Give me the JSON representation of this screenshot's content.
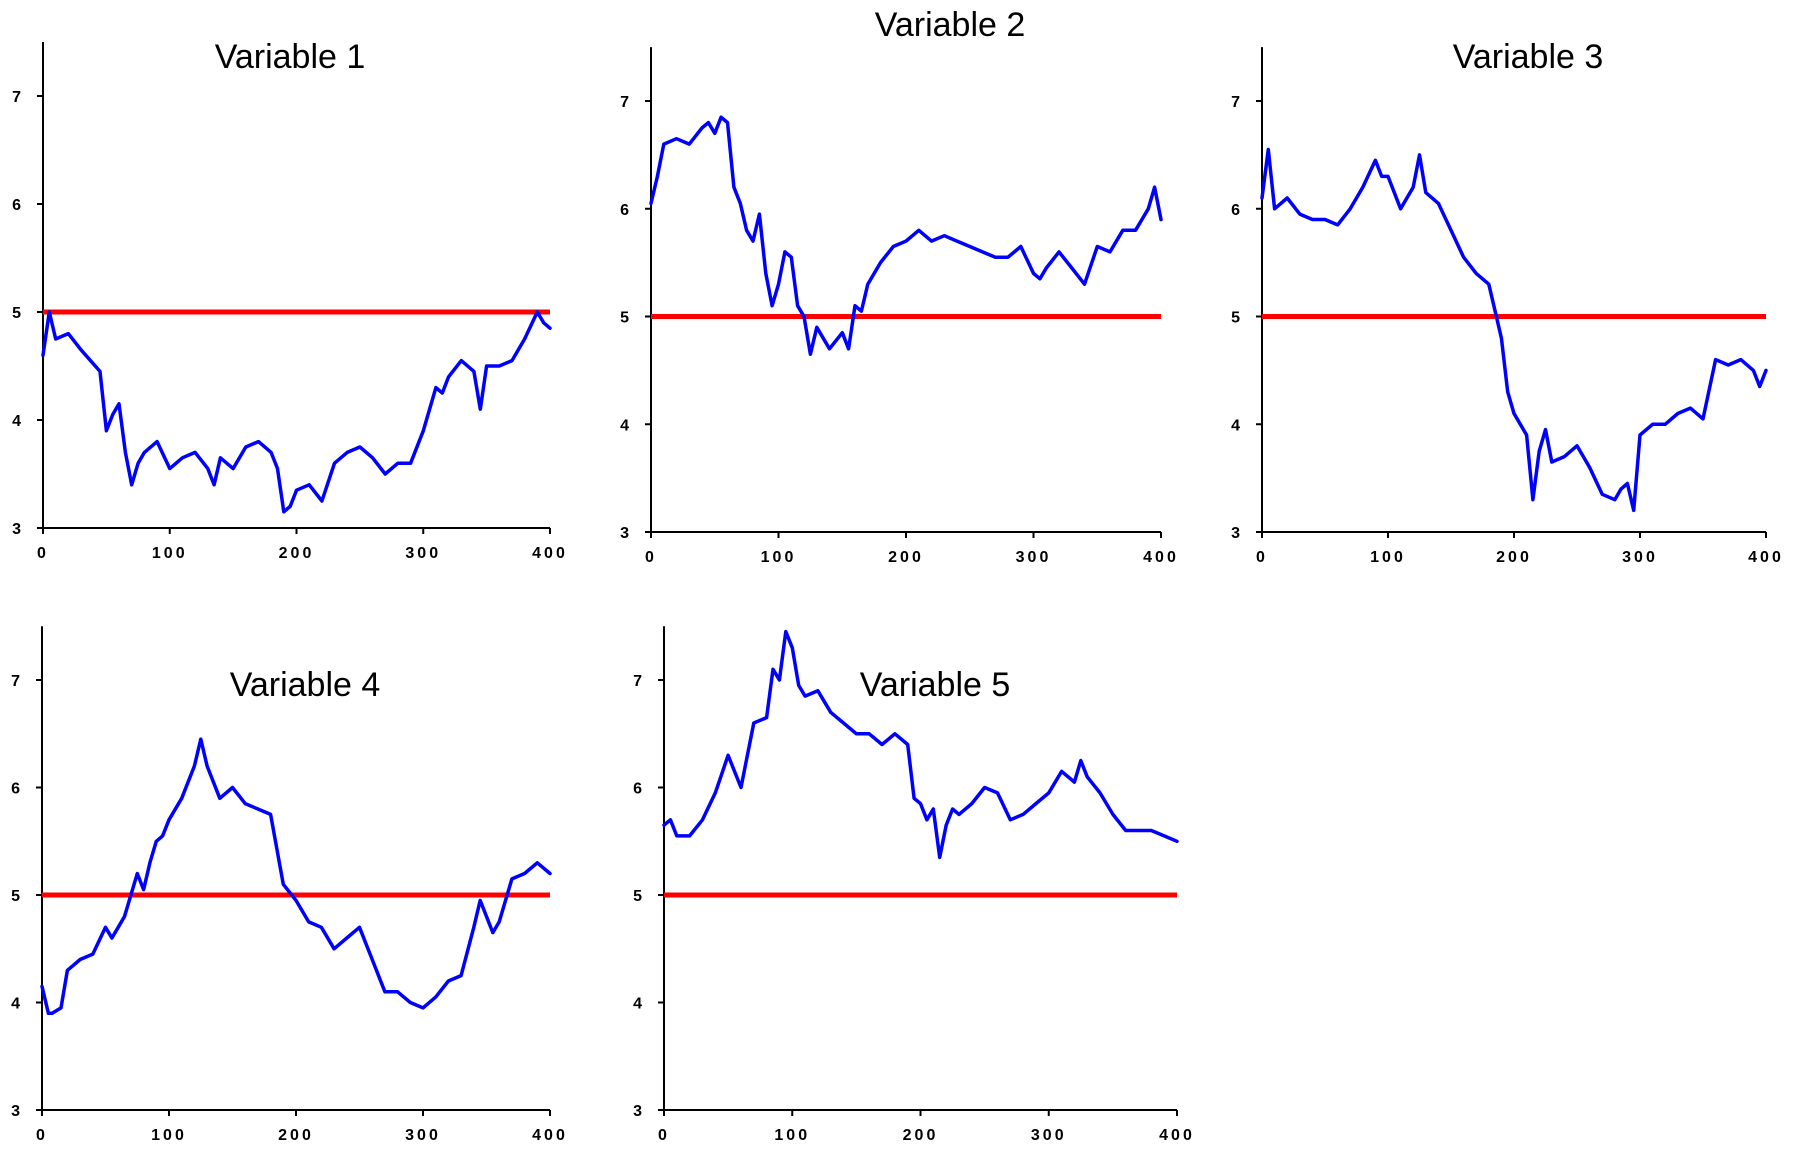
{
  "chart_data": [
    {
      "type": "line",
      "title": "Variable 1",
      "xlim": [
        0,
        400
      ],
      "ylim": [
        3,
        7.5
      ],
      "xticks": [
        0,
        100,
        200,
        300,
        400
      ],
      "yticks": [
        3,
        4,
        5,
        6,
        7
      ],
      "grid": false,
      "reference_line": {
        "y": 5,
        "color": "#ff0000"
      },
      "series": [
        {
          "color": "#0000ff",
          "x": [
            0,
            5,
            10,
            20,
            30,
            45,
            50,
            55,
            60,
            65,
            70,
            75,
            80,
            90,
            100,
            110,
            120,
            130,
            135,
            140,
            150,
            160,
            170,
            180,
            185,
            190,
            195,
            200,
            210,
            220,
            230,
            240,
            250,
            260,
            270,
            280,
            290,
            300,
            310,
            315,
            320,
            330,
            340,
            345,
            350,
            360,
            370,
            380,
            390,
            395,
            400
          ],
          "y": [
            4.6,
            5.0,
            4.75,
            4.8,
            4.65,
            4.45,
            3.9,
            4.05,
            4.15,
            3.7,
            3.4,
            3.6,
            3.7,
            3.8,
            3.55,
            3.65,
            3.7,
            3.55,
            3.4,
            3.65,
            3.55,
            3.75,
            3.8,
            3.7,
            3.55,
            3.15,
            3.2,
            3.35,
            3.4,
            3.25,
            3.6,
            3.7,
            3.75,
            3.65,
            3.5,
            3.6,
            3.6,
            3.9,
            4.3,
            4.25,
            4.4,
            4.55,
            4.45,
            4.1,
            4.5,
            4.5,
            4.55,
            4.75,
            5.0,
            4.9,
            4.85
          ]
        }
      ]
    },
    {
      "type": "line",
      "title": "Variable 2",
      "xlim": [
        0,
        400
      ],
      "ylim": [
        3,
        7.5
      ],
      "xticks": [
        0,
        100,
        200,
        300,
        400
      ],
      "yticks": [
        3,
        4,
        5,
        6,
        7
      ],
      "grid": false,
      "reference_line": {
        "y": 5,
        "color": "#ff0000"
      },
      "series": [
        {
          "color": "#0000ff",
          "x": [
            0,
            5,
            10,
            20,
            30,
            40,
            45,
            50,
            55,
            60,
            65,
            70,
            75,
            80,
            85,
            90,
            95,
            100,
            105,
            110,
            115,
            120,
            125,
            130,
            140,
            150,
            155,
            160,
            165,
            170,
            180,
            190,
            200,
            210,
            220,
            230,
            240,
            250,
            260,
            270,
            280,
            290,
            300,
            305,
            310,
            320,
            330,
            340,
            350,
            360,
            370,
            380,
            390,
            395,
            400
          ],
          "y": [
            6.05,
            6.3,
            6.6,
            6.65,
            6.6,
            6.75,
            6.8,
            6.7,
            6.85,
            6.8,
            6.2,
            6.05,
            5.8,
            5.7,
            5.95,
            5.4,
            5.1,
            5.3,
            5.6,
            5.55,
            5.1,
            5.0,
            4.65,
            4.9,
            4.7,
            4.85,
            4.7,
            5.1,
            5.05,
            5.3,
            5.5,
            5.65,
            5.7,
            5.8,
            5.7,
            5.75,
            5.7,
            5.65,
            5.6,
            5.55,
            5.55,
            5.65,
            5.4,
            5.35,
            5.45,
            5.6,
            5.45,
            5.3,
            5.65,
            5.6,
            5.8,
            5.8,
            6.0,
            6.2,
            5.9
          ]
        }
      ]
    },
    {
      "type": "line",
      "title": "Variable 3",
      "xlim": [
        0,
        400
      ],
      "ylim": [
        3,
        7.5
      ],
      "xticks": [
        0,
        100,
        200,
        300,
        400
      ],
      "yticks": [
        3,
        4,
        5,
        6,
        7
      ],
      "grid": false,
      "reference_line": {
        "y": 5,
        "color": "#ff0000"
      },
      "series": [
        {
          "color": "#0000ff",
          "x": [
            0,
            5,
            10,
            20,
            30,
            40,
            50,
            60,
            70,
            80,
            90,
            95,
            100,
            110,
            120,
            125,
            130,
            140,
            150,
            160,
            170,
            180,
            185,
            190,
            195,
            200,
            210,
            215,
            220,
            225,
            230,
            240,
            250,
            260,
            270,
            280,
            285,
            290,
            295,
            300,
            310,
            320,
            330,
            340,
            350,
            360,
            370,
            380,
            390,
            395,
            400
          ],
          "y": [
            6.1,
            6.55,
            6.0,
            6.1,
            5.95,
            5.9,
            5.9,
            5.85,
            6.0,
            6.2,
            6.45,
            6.3,
            6.3,
            6.0,
            6.2,
            6.5,
            6.15,
            6.05,
            5.8,
            5.55,
            5.4,
            5.3,
            5.05,
            4.8,
            4.3,
            4.1,
            3.9,
            3.3,
            3.75,
            3.95,
            3.65,
            3.7,
            3.8,
            3.6,
            3.35,
            3.3,
            3.4,
            3.45,
            3.2,
            3.9,
            4.0,
            4.0,
            4.1,
            4.15,
            4.05,
            4.6,
            4.55,
            4.6,
            4.5,
            4.35,
            4.5
          ]
        }
      ]
    },
    {
      "type": "line",
      "title": "Variable 4",
      "xlim": [
        0,
        400
      ],
      "ylim": [
        3,
        7.5
      ],
      "xticks": [
        0,
        100,
        200,
        300,
        400
      ],
      "yticks": [
        3,
        4,
        5,
        6,
        7
      ],
      "grid": false,
      "reference_line": {
        "y": 5,
        "color": "#ff0000"
      },
      "series": [
        {
          "color": "#0000ff",
          "x": [
            0,
            5,
            8,
            15,
            20,
            25,
            30,
            40,
            50,
            55,
            60,
            65,
            70,
            75,
            80,
            85,
            90,
            95,
            100,
            110,
            120,
            125,
            130,
            140,
            150,
            160,
            170,
            180,
            190,
            200,
            210,
            220,
            230,
            240,
            250,
            260,
            270,
            280,
            290,
            300,
            310,
            320,
            330,
            340,
            345,
            350,
            355,
            360,
            370,
            380,
            390,
            400
          ],
          "y": [
            4.15,
            3.9,
            3.9,
            3.95,
            4.3,
            4.35,
            4.4,
            4.45,
            4.7,
            4.6,
            4.7,
            4.8,
            5.0,
            5.2,
            5.05,
            5.3,
            5.5,
            5.55,
            5.7,
            5.9,
            6.2,
            6.45,
            6.2,
            5.9,
            6.0,
            5.85,
            5.8,
            5.75,
            5.1,
            4.95,
            4.75,
            4.7,
            4.5,
            4.6,
            4.7,
            4.4,
            4.1,
            4.1,
            4.0,
            3.95,
            4.05,
            4.2,
            4.25,
            4.7,
            4.95,
            4.8,
            4.65,
            4.75,
            5.15,
            5.2,
            5.3,
            5.2
          ]
        }
      ]
    },
    {
      "type": "line",
      "title": "Variable 5",
      "xlim": [
        0,
        400
      ],
      "ylim": [
        3,
        7.5
      ],
      "xticks": [
        0,
        100,
        200,
        300,
        400
      ],
      "yticks": [
        3,
        4,
        5,
        6,
        7
      ],
      "grid": false,
      "reference_line": {
        "y": 5,
        "color": "#ff0000"
      },
      "series": [
        {
          "color": "#0000ff",
          "x": [
            0,
            5,
            10,
            20,
            30,
            40,
            50,
            60,
            70,
            80,
            85,
            90,
            95,
            100,
            105,
            110,
            120,
            130,
            140,
            150,
            160,
            170,
            180,
            190,
            195,
            200,
            205,
            210,
            215,
            220,
            225,
            230,
            240,
            250,
            260,
            270,
            280,
            290,
            300,
            310,
            320,
            325,
            330,
            340,
            350,
            360,
            370,
            380,
            390,
            400
          ],
          "y": [
            5.65,
            5.7,
            5.55,
            5.55,
            5.7,
            5.95,
            6.3,
            6.0,
            6.6,
            6.65,
            7.1,
            7.0,
            7.45,
            7.3,
            6.95,
            6.85,
            6.9,
            6.7,
            6.6,
            6.5,
            6.5,
            6.4,
            6.5,
            6.4,
            5.9,
            5.85,
            5.7,
            5.8,
            5.35,
            5.65,
            5.8,
            5.75,
            5.85,
            6.0,
            5.95,
            5.7,
            5.75,
            5.85,
            5.95,
            6.15,
            6.05,
            6.25,
            6.1,
            5.95,
            5.75,
            5.6,
            5.6,
            5.6,
            5.55,
            5.5
          ]
        }
      ]
    }
  ]
}
